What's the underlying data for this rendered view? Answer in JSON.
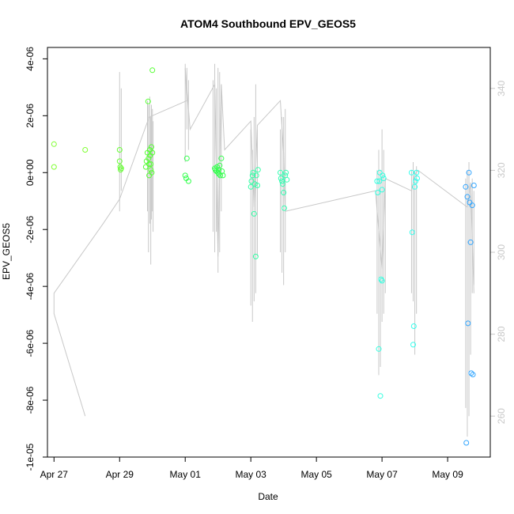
{
  "chart_data": {
    "type": "scatter",
    "title": "ATOM4 Southbound EPV_GEOS5",
    "xlabel": "Date",
    "ylabel": "EPV_GEOS5",
    "x_unit": "days since Apr 27",
    "xlim": [
      -0.2,
      13.3
    ],
    "ylim": [
      -1e-05,
      4.4e-06
    ],
    "x_ticks": [
      {
        "value": 0,
        "label": "Apr 27"
      },
      {
        "value": 2,
        "label": "Apr 29"
      },
      {
        "value": 4,
        "label": "May 01"
      },
      {
        "value": 6,
        "label": "May 03"
      },
      {
        "value": 8,
        "label": "May 05"
      },
      {
        "value": 10,
        "label": "May 07"
      },
      {
        "value": 12,
        "label": "May 09"
      }
    ],
    "y_ticks": [
      {
        "value": -1e-05,
        "label": "-1e-05"
      },
      {
        "value": -8e-06,
        "label": "-8e-06"
      },
      {
        "value": -6e-06,
        "label": "-6e-06"
      },
      {
        "value": -4e-06,
        "label": "-4e-06"
      },
      {
        "value": -2e-06,
        "label": "-2e-06"
      },
      {
        "value": 0,
        "label": "0e+00"
      },
      {
        "value": 2e-06,
        "label": "2e-06"
      },
      {
        "value": 4e-06,
        "label": "4e-06"
      }
    ],
    "secondary_axis": {
      "side": "right",
      "color": "#c8c8c8",
      "ylim": [
        250,
        350
      ],
      "ticks": [
        {
          "value": 260,
          "label": "260"
        },
        {
          "value": 280,
          "label": "280"
        },
        {
          "value": 300,
          "label": "300"
        },
        {
          "value": 320,
          "label": "320"
        },
        {
          "value": 340,
          "label": "340"
        }
      ]
    },
    "series": [
      {
        "name": "EPV_GEOS5",
        "style": "points",
        "points": [
          {
            "x": 0.0,
            "y": 1e-06,
            "color": "#80ff33"
          },
          {
            "x": 0.0,
            "y": 2e-07,
            "color": "#80ff33"
          },
          {
            "x": 0.95,
            "y": 8e-07,
            "color": "#80ff33"
          },
          {
            "x": 2.0,
            "y": 8e-07,
            "color": "#66ff33"
          },
          {
            "x": 2.0,
            "y": 4e-07,
            "color": "#66ff33"
          },
          {
            "x": 2.02,
            "y": 2e-07,
            "color": "#66ff33"
          },
          {
            "x": 2.03,
            "y": 1e-07,
            "color": "#66ff33"
          },
          {
            "x": 2.05,
            "y": 1.5e-07,
            "color": "#66ff33"
          },
          {
            "x": 2.8,
            "y": 2e-07,
            "color": "#55ff33"
          },
          {
            "x": 2.82,
            "y": 4e-07,
            "color": "#55ff33"
          },
          {
            "x": 2.85,
            "y": 7e-07,
            "color": "#55ff33"
          },
          {
            "x": 2.87,
            "y": 2.5e-06,
            "color": "#55ff33"
          },
          {
            "x": 2.88,
            "y": 5e-07,
            "color": "#55ff33"
          },
          {
            "x": 2.9,
            "y": 3e-07,
            "color": "#55ff33"
          },
          {
            "x": 2.9,
            "y": -1e-07,
            "color": "#55ff33"
          },
          {
            "x": 2.92,
            "y": 8e-07,
            "color": "#55ff33"
          },
          {
            "x": 2.93,
            "y": 6e-07,
            "color": "#55ff33"
          },
          {
            "x": 2.95,
            "y": 3e-07,
            "color": "#55ff33"
          },
          {
            "x": 2.95,
            "y": 1e-07,
            "color": "#55ff33"
          },
          {
            "x": 2.97,
            "y": 9e-07,
            "color": "#55ff33"
          },
          {
            "x": 2.98,
            "y": 0.0,
            "color": "#55ff33"
          },
          {
            "x": 3.0,
            "y": 3.6e-06,
            "color": "#55ff33"
          },
          {
            "x": 3.0,
            "y": 7e-07,
            "color": "#55ff33"
          },
          {
            "x": 4.05,
            "y": 5e-07,
            "color": "#33ff4d"
          },
          {
            "x": 4.0,
            "y": -1e-07,
            "color": "#33ff4d"
          },
          {
            "x": 4.03,
            "y": -2e-07,
            "color": "#33ff4d"
          },
          {
            "x": 4.1,
            "y": -3e-07,
            "color": "#33ff4d"
          },
          {
            "x": 4.9,
            "y": 1.5e-07,
            "color": "#33ff4d"
          },
          {
            "x": 4.92,
            "y": 1e-07,
            "color": "#33ff4d"
          },
          {
            "x": 4.95,
            "y": 5e-08,
            "color": "#33ff4d"
          },
          {
            "x": 4.97,
            "y": 2e-07,
            "color": "#33ff4d"
          },
          {
            "x": 5.0,
            "y": 0.0,
            "color": "#33ff4d"
          },
          {
            "x": 5.02,
            "y": 1e-07,
            "color": "#33ff4d"
          },
          {
            "x": 5.03,
            "y": -5e-08,
            "color": "#33ff4d"
          },
          {
            "x": 5.05,
            "y": 2.5e-07,
            "color": "#33ff4d"
          },
          {
            "x": 5.07,
            "y": -1e-07,
            "color": "#33ff4d"
          },
          {
            "x": 5.1,
            "y": 5e-07,
            "color": "#33ff4d"
          },
          {
            "x": 5.12,
            "y": 5e-08,
            "color": "#33ff4d"
          },
          {
            "x": 5.15,
            "y": -1e-07,
            "color": "#33ff4d"
          },
          {
            "x": 6.0,
            "y": -5e-07,
            "color": "#33ffa6"
          },
          {
            "x": 6.02,
            "y": -3e-07,
            "color": "#33ffa6"
          },
          {
            "x": 6.05,
            "y": -1e-07,
            "color": "#33ffa6"
          },
          {
            "x": 6.07,
            "y": 0.0,
            "color": "#33ffa6"
          },
          {
            "x": 6.1,
            "y": -1.45e-06,
            "color": "#33ffa6"
          },
          {
            "x": 6.12,
            "y": -4e-07,
            "color": "#33ffa6"
          },
          {
            "x": 6.15,
            "y": -2.95e-06,
            "color": "#33ffa6"
          },
          {
            "x": 6.17,
            "y": -1e-07,
            "color": "#33ffa6"
          },
          {
            "x": 6.2,
            "y": -4.5e-07,
            "color": "#33ffa6"
          },
          {
            "x": 6.22,
            "y": 1e-07,
            "color": "#33ffa6"
          },
          {
            "x": 6.9,
            "y": 0.0,
            "color": "#33ffb3"
          },
          {
            "x": 6.92,
            "y": -2e-07,
            "color": "#33ffb3"
          },
          {
            "x": 6.95,
            "y": -3e-07,
            "color": "#33ffb3"
          },
          {
            "x": 6.97,
            "y": -4e-07,
            "color": "#33ffb3"
          },
          {
            "x": 7.0,
            "y": -7e-07,
            "color": "#33ffb3"
          },
          {
            "x": 7.02,
            "y": -1.25e-06,
            "color": "#33ffb3"
          },
          {
            "x": 7.05,
            "y": -1e-07,
            "color": "#33ffb3"
          },
          {
            "x": 7.07,
            "y": 0.0,
            "color": "#33ffb3"
          },
          {
            "x": 7.1,
            "y": -2.5e-07,
            "color": "#33ffb3"
          },
          {
            "x": 9.85,
            "y": -3e-07,
            "color": "#33ffe0"
          },
          {
            "x": 9.87,
            "y": -7e-07,
            "color": "#33ffe0"
          },
          {
            "x": 9.9,
            "y": -6.2e-06,
            "color": "#33ffe0"
          },
          {
            "x": 9.92,
            "y": -3e-07,
            "color": "#33ffe0"
          },
          {
            "x": 9.93,
            "y": 0.0,
            "color": "#33ffe0"
          },
          {
            "x": 9.95,
            "y": -7.85e-06,
            "color": "#33ffe0"
          },
          {
            "x": 9.97,
            "y": -3.75e-06,
            "color": "#33ffe0"
          },
          {
            "x": 10.0,
            "y": -3.8e-06,
            "color": "#33ffe0"
          },
          {
            "x": 10.0,
            "y": -6e-07,
            "color": "#33ffe0"
          },
          {
            "x": 10.02,
            "y": -1e-07,
            "color": "#33ffe0"
          },
          {
            "x": 10.05,
            "y": -2e-07,
            "color": "#33ffe0"
          },
          {
            "x": 10.9,
            "y": 0.0,
            "color": "#33ffee"
          },
          {
            "x": 10.92,
            "y": -2.1e-06,
            "color": "#33ffee"
          },
          {
            "x": 10.95,
            "y": -6.05e-06,
            "color": "#33ffee"
          },
          {
            "x": 10.97,
            "y": -5.4e-06,
            "color": "#33ffee"
          },
          {
            "x": 11.0,
            "y": -5e-07,
            "color": "#33ffee"
          },
          {
            "x": 11.02,
            "y": -3e-07,
            "color": "#33ffee"
          },
          {
            "x": 11.05,
            "y": 0.0,
            "color": "#33ffee"
          },
          {
            "x": 11.07,
            "y": -2e-07,
            "color": "#33ffee"
          },
          {
            "x": 12.55,
            "y": -5e-07,
            "color": "#33a6ff"
          },
          {
            "x": 12.57,
            "y": -9.5e-06,
            "color": "#33a6ff"
          },
          {
            "x": 12.6,
            "y": -8.5e-07,
            "color": "#33a6ff"
          },
          {
            "x": 12.62,
            "y": -5.3e-06,
            "color": "#33a6ff"
          },
          {
            "x": 12.65,
            "y": 0.0,
            "color": "#33a6ff"
          },
          {
            "x": 12.67,
            "y": -1.05e-06,
            "color": "#33a6ff"
          },
          {
            "x": 12.7,
            "y": -2.45e-06,
            "color": "#33a6ff"
          },
          {
            "x": 12.72,
            "y": -7.05e-06,
            "color": "#33a6ff"
          },
          {
            "x": 12.75,
            "y": -1.15e-06,
            "color": "#33a6ff"
          },
          {
            "x": 12.77,
            "y": -7.1e-06,
            "color": "#33a6ff"
          },
          {
            "x": 12.8,
            "y": -4.5e-07,
            "color": "#33a6ff"
          }
        ]
      },
      {
        "name": "secondary trace",
        "style": "line",
        "axis": "right",
        "color": "#c8c8c8",
        "points": [
          [
            0.95,
            260
          ],
          [
            0.0,
            285
          ],
          [
            0.0,
            290
          ],
          [
            1.5,
            307
          ],
          [
            2.0,
            313
          ],
          [
            2.9,
            333
          ],
          [
            4.05,
            337
          ],
          [
            4.0,
            345
          ],
          [
            4.15,
            330
          ],
          [
            4.9,
            341
          ],
          [
            5.0,
            299
          ],
          [
            5.1,
            341
          ],
          [
            5.2,
            325
          ],
          [
            6.0,
            332
          ],
          [
            6.1,
            311
          ],
          [
            6.2,
            331
          ],
          [
            6.9,
            337
          ],
          [
            7.0,
            324
          ],
          [
            7.05,
            310
          ],
          [
            9.8,
            315
          ],
          [
            10.0,
            296
          ],
          [
            10.1,
            318
          ],
          [
            10.9,
            315
          ],
          [
            11.0,
            319
          ],
          [
            11.1,
            320
          ],
          [
            12.6,
            311
          ],
          [
            12.7,
            317
          ],
          [
            12.8,
            290
          ]
        ]
      },
      {
        "name": "vertical profiles",
        "style": "segments",
        "axis": "right",
        "color": "#c8c8c8",
        "segments": [
          [
            2.0,
            310,
            2.0,
            344
          ],
          [
            2.05,
            315,
            2.05,
            340
          ],
          [
            2.85,
            310,
            2.85,
            337
          ],
          [
            2.88,
            300,
            2.88,
            336
          ],
          [
            2.92,
            307,
            2.92,
            338
          ],
          [
            2.95,
            297,
            2.95,
            333
          ],
          [
            2.97,
            308,
            2.97,
            336
          ],
          [
            3.0,
            310,
            3.0,
            335
          ],
          [
            3.02,
            305,
            3.02,
            332
          ],
          [
            4.0,
            322,
            4.0,
            346
          ],
          [
            4.05,
            330,
            4.05,
            345
          ],
          [
            4.1,
            325,
            4.1,
            342
          ],
          [
            4.85,
            305,
            4.85,
            342
          ],
          [
            4.9,
            300,
            4.9,
            346
          ],
          [
            4.95,
            305,
            4.95,
            340
          ],
          [
            5.0,
            295,
            5.0,
            345
          ],
          [
            5.05,
            300,
            5.05,
            344
          ],
          [
            5.1,
            310,
            5.1,
            341
          ],
          [
            6.0,
            287,
            6.0,
            330
          ],
          [
            6.05,
            283,
            6.05,
            325
          ],
          [
            6.1,
            288,
            6.1,
            333
          ],
          [
            6.15,
            290,
            6.15,
            341
          ],
          [
            6.2,
            299,
            6.2,
            330
          ],
          [
            6.9,
            300,
            6.9,
            330
          ],
          [
            6.95,
            295,
            6.95,
            333
          ],
          [
            7.0,
            292,
            7.0,
            333
          ],
          [
            7.05,
            300,
            7.05,
            335
          ],
          [
            9.85,
            285,
            9.85,
            320
          ],
          [
            9.9,
            270,
            9.9,
            325
          ],
          [
            9.95,
            272,
            9.95,
            320
          ],
          [
            10.0,
            283,
            10.0,
            330
          ],
          [
            10.05,
            285,
            10.05,
            325
          ],
          [
            10.1,
            290,
            10.1,
            318
          ],
          [
            10.9,
            290,
            10.9,
            320
          ],
          [
            10.95,
            288,
            10.95,
            322
          ],
          [
            11.0,
            275,
            11.0,
            320
          ],
          [
            11.05,
            285,
            11.05,
            321
          ],
          [
            12.55,
            262,
            12.55,
            318
          ],
          [
            12.6,
            255,
            12.6,
            320
          ],
          [
            12.65,
            260,
            12.65,
            322
          ],
          [
            12.7,
            275,
            12.7,
            315
          ],
          [
            12.75,
            290,
            12.75,
            318
          ],
          [
            12.8,
            292,
            12.8,
            315
          ]
        ]
      }
    ]
  }
}
